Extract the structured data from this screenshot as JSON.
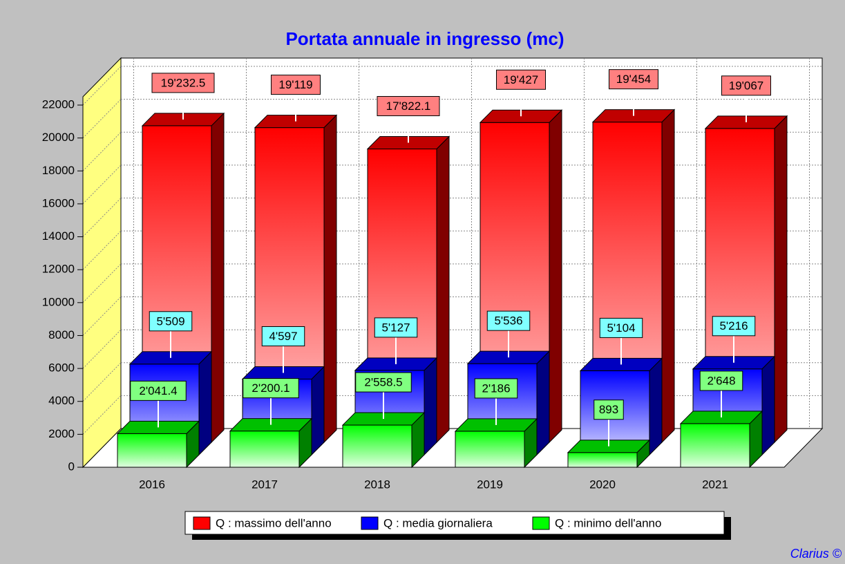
{
  "chart_data": {
    "type": "bar3d",
    "title": "Portata annuale in ingresso (mc)",
    "categories": [
      "2016",
      "2017",
      "2018",
      "2019",
      "2020",
      "2021"
    ],
    "series": [
      {
        "name": "Q : massimo dell'anno",
        "color": "#ff0000",
        "values": [
          19232.5,
          19119,
          17822.1,
          19427,
          19454,
          19067
        ],
        "value_labels": [
          "19'232.5",
          "19'119",
          "17'822.1",
          "19'427",
          "19'454",
          "19'067"
        ]
      },
      {
        "name": "Q : media giornaliera",
        "color": "#0000ff",
        "values": [
          5509,
          4597,
          5127,
          5536,
          5104,
          5216
        ],
        "value_labels": [
          "5'509",
          "4'597",
          "5'127",
          "5'536",
          "5'104",
          "5'216"
        ]
      },
      {
        "name": "Q : minimo dell'anno",
        "color": "#00ff00",
        "values": [
          2041.4,
          2200.1,
          2558.5,
          2186,
          893,
          2648
        ],
        "value_labels": [
          "2'041.4",
          "2'200.1",
          "2'558.5",
          "2'186",
          "893",
          "2'648"
        ]
      }
    ],
    "ylim": [
      0,
      22000
    ],
    "yticks": [
      0,
      2000,
      4000,
      6000,
      8000,
      10000,
      12000,
      14000,
      16000,
      18000,
      20000,
      22000
    ],
    "grid": true,
    "legend": "bottom",
    "credit": "Clarius ©"
  }
}
